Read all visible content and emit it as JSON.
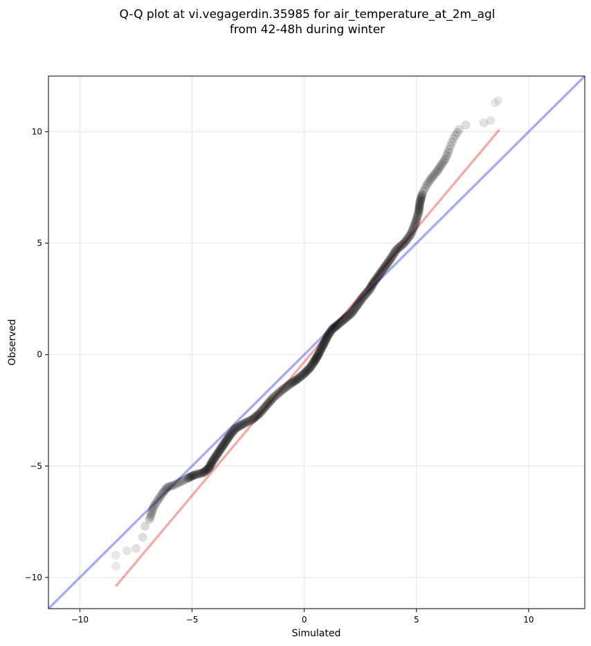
{
  "chart_data": {
    "type": "scatter",
    "title_lines": [
      "Q-Q plot at vi.vegagerdin.35985 for air_temperature_at_2m_agl",
      "from 42-48h during winter"
    ],
    "xlabel": "Simulated",
    "ylabel": "Observed",
    "xlim": [
      -11.4,
      12.5
    ],
    "ylim": [
      -11.4,
      12.5
    ],
    "xticks": [
      -10,
      -5,
      0,
      5,
      10
    ],
    "yticks": [
      -10,
      -5,
      0,
      5,
      10
    ],
    "xtick_labels": [
      "−10",
      "−5",
      "0",
      "5",
      "10"
    ],
    "ytick_labels": [
      "−10",
      "−5",
      "0",
      "5",
      "10"
    ],
    "grid": true,
    "identity_line": {
      "color": "#0000e0",
      "opacity": 0.33
    },
    "fit_line": {
      "x": [
        -8.4,
        8.7
      ],
      "y": [
        -10.4,
        10.1
      ],
      "color": "#e00000",
      "opacity": 0.33
    },
    "point_color": "#000000",
    "points": [
      [
        -8.4,
        -9.5
      ],
      [
        -8.4,
        -9.0
      ],
      [
        -7.9,
        -8.8
      ],
      [
        -7.5,
        -8.7
      ],
      [
        -7.2,
        -8.2
      ],
      [
        -7.1,
        -7.7
      ],
      [
        -6.9,
        -7.4
      ],
      [
        -6.8,
        -7.1
      ],
      [
        -6.7,
        -6.8
      ],
      [
        -6.5,
        -6.5
      ],
      [
        -6.3,
        -6.2
      ],
      [
        -6.1,
        -5.95
      ],
      [
        -5.8,
        -5.85
      ],
      [
        -5.5,
        -5.7
      ],
      [
        -5.2,
        -5.55
      ],
      [
        -4.9,
        -5.4
      ],
      [
        -4.5,
        -5.3
      ],
      [
        -4.25,
        -5.1
      ],
      [
        -4.1,
        -4.8
      ],
      [
        -3.9,
        -4.5
      ],
      [
        -3.7,
        -4.2
      ],
      [
        -3.5,
        -3.9
      ],
      [
        -3.3,
        -3.6
      ],
      [
        -3.05,
        -3.3
      ],
      [
        -2.7,
        -3.1
      ],
      [
        -2.3,
        -2.9
      ],
      [
        -2.0,
        -2.65
      ],
      [
        -1.7,
        -2.3
      ],
      [
        -1.4,
        -1.95
      ],
      [
        -1.0,
        -1.6
      ],
      [
        -0.6,
        -1.3
      ],
      [
        -0.3,
        -1.1
      ],
      [
        0.0,
        -0.85
      ],
      [
        0.25,
        -0.6
      ],
      [
        0.45,
        -0.3
      ],
      [
        0.6,
        -0.05
      ],
      [
        0.75,
        0.25
      ],
      [
        0.9,
        0.55
      ],
      [
        1.05,
        0.85
      ],
      [
        1.25,
        1.15
      ],
      [
        1.5,
        1.35
      ],
      [
        1.8,
        1.6
      ],
      [
        2.1,
        1.85
      ],
      [
        2.35,
        2.2
      ],
      [
        2.6,
        2.55
      ],
      [
        2.9,
        2.9
      ],
      [
        3.1,
        3.25
      ],
      [
        3.35,
        3.6
      ],
      [
        3.6,
        3.95
      ],
      [
        3.85,
        4.3
      ],
      [
        4.1,
        4.7
      ],
      [
        4.45,
        5.0
      ],
      [
        4.75,
        5.4
      ],
      [
        4.95,
        5.9
      ],
      [
        5.1,
        6.4
      ],
      [
        5.15,
        6.8
      ],
      [
        5.25,
        7.2
      ],
      [
        5.45,
        7.6
      ],
      [
        5.65,
        7.9
      ],
      [
        5.9,
        8.2
      ],
      [
        6.1,
        8.5
      ],
      [
        6.3,
        8.8
      ],
      [
        6.45,
        9.2
      ],
      [
        6.65,
        9.7
      ],
      [
        6.9,
        10.1
      ],
      [
        7.2,
        10.3
      ],
      [
        8.0,
        10.4
      ],
      [
        8.3,
        10.5
      ],
      [
        8.5,
        11.3
      ],
      [
        8.65,
        11.4
      ]
    ]
  }
}
